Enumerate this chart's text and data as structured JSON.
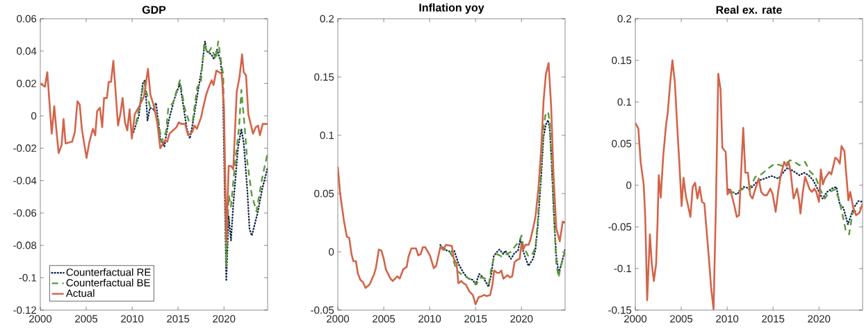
{
  "chart_data": [
    {
      "type": "line",
      "title": "GDP",
      "xlim": [
        2000,
        2024.75
      ],
      "xticks": [
        2000,
        2005,
        2010,
        2015,
        2020
      ],
      "ylim": [
        -0.12,
        0.06
      ],
      "yticks": [
        -0.12,
        -0.1,
        -0.08,
        -0.06,
        -0.04,
        -0.02,
        0,
        0.02,
        0.04,
        0.06
      ],
      "grid": false,
      "legend": "bottom left",
      "marker": "none",
      "series": [
        {
          "name": "Counterfactual RE",
          "color": "#14284b",
          "line_style": "dotted",
          "x": [
            2010.15,
            2010.73,
            2011.16,
            2011.39,
            2011.67,
            2011.94,
            2012.3,
            2012.6,
            2013.06,
            2013.51,
            2013.94,
            2014.57,
            2015.2,
            2015.96,
            2016.29,
            2016.59,
            2017.22,
            2017.6,
            2017.93,
            2018.11,
            2018.61,
            2018.91,
            2019.24,
            2019.62,
            2019.87,
            2020.25,
            2020.51,
            2020.76,
            2021.01,
            2021.52,
            2021.89,
            2022.15,
            2022.53,
            2022.78,
            2023.03,
            2023.66,
            2024.17,
            2024.75
          ],
          "values": [
            -0.01,
            0.0,
            0.02,
            0.022,
            -0.003,
            0.005,
            0.004,
            0.008,
            -0.014,
            -0.019,
            -0.004,
            0.01,
            0.02,
            -0.008,
            -0.014,
            -0.005,
            0.017,
            0.03,
            0.046,
            0.04,
            0.038,
            0.035,
            0.041,
            0.034,
            0.02,
            -0.102,
            -0.062,
            -0.077,
            -0.055,
            -0.02,
            -0.008,
            -0.017,
            -0.045,
            -0.07,
            -0.074,
            -0.06,
            -0.045,
            -0.032
          ]
        },
        {
          "name": "Counterfactual BE",
          "color": "#5a9a3c",
          "line_style": "dashed",
          "x": [
            2010.4,
            2010.78,
            2011.29,
            2011.92,
            2012.3,
            2012.8,
            2013.18,
            2013.69,
            2013.94,
            2014.44,
            2015.2,
            2015.71,
            2016.21,
            2016.59,
            2017.1,
            2017.47,
            2017.85,
            2018.23,
            2018.61,
            2019.12,
            2019.37,
            2019.62,
            2019.92,
            2020.25,
            2020.51,
            2020.76,
            2021.26,
            2021.64,
            2021.89,
            2022.27,
            2022.53,
            2023.03,
            2023.54,
            2024.17,
            2024.75
          ],
          "values": [
            -0.005,
            0.005,
            0.021,
            0.006,
            0.004,
            0.0,
            -0.016,
            -0.01,
            0.005,
            0.008,
            0.022,
            0.005,
            -0.004,
            -0.003,
            0.018,
            0.02,
            0.045,
            0.038,
            0.042,
            0.035,
            0.046,
            0.036,
            0.025,
            -0.093,
            -0.049,
            -0.056,
            -0.026,
            -0.007,
            0.016,
            -0.008,
            -0.028,
            -0.049,
            -0.059,
            -0.038,
            -0.023
          ]
        },
        {
          "name": "Actual",
          "color": "#d2644a",
          "line_style": "solid",
          "x": [
            2000,
            2000.5,
            2000.76,
            2001.24,
            2001.52,
            2001.69,
            2001.99,
            2002.32,
            2002.53,
            2002.75,
            2003.46,
            2003.76,
            2004.04,
            2004.29,
            2004.52,
            2005.03,
            2005.35,
            2005.73,
            2005.98,
            2006.19,
            2006.49,
            2006.74,
            2006.94,
            2007.25,
            2007.45,
            2007.7,
            2007.95,
            2008.16,
            2008.46,
            2008.71,
            2008.96,
            2009.22,
            2009.47,
            2009.72,
            2009.97,
            2010.28,
            2010.78,
            2011.29,
            2011.72,
            2011.99,
            2012.42,
            2012.75,
            2013.06,
            2013.56,
            2013.81,
            2014.07,
            2014.82,
            2015.08,
            2015.33,
            2015.76,
            2016.09,
            2016.54,
            2016.79,
            2017.05,
            2017.5,
            2017.73,
            2018.06,
            2018.36,
            2018.66,
            2018.86,
            2019.17,
            2019.75,
            2020.0,
            2020.25,
            2020.51,
            2020.76,
            2021.01,
            2021.39,
            2021.69,
            2021.97,
            2022.15,
            2022.4,
            2022.65,
            2022.95,
            2023.16,
            2023.46,
            2023.71,
            2023.91,
            2024.22,
            2024.75
          ],
          "values": [
            0.02,
            0.018,
            0.027,
            -0.011,
            0.006,
            -0.005,
            -0.023,
            -0.018,
            -0.002,
            -0.017,
            -0.016,
            -0.01,
            0.009,
            0.007,
            -0.008,
            -0.026,
            -0.016,
            -0.008,
            -0.012,
            0.003,
            0.005,
            -0.007,
            0.011,
            0.011,
            0.021,
            0.021,
            0.034,
            0.018,
            -0.006,
            0.001,
            0.011,
            -0.004,
            -0.009,
            0.004,
            -0.014,
            0.001,
            0.006,
            0.012,
            0.029,
            0.013,
            0.005,
            -0.005,
            -0.02,
            -0.015,
            -0.016,
            -0.011,
            -0.007,
            -0.004,
            -0.005,
            -0.005,
            -0.012,
            -0.01,
            -0.006,
            -0.008,
            -0.001,
            0.005,
            0.013,
            0.018,
            0.022,
            0.019,
            0.028,
            0.026,
            0.005,
            -0.078,
            -0.031,
            -0.031,
            -0.033,
            0.015,
            0.024,
            0.038,
            0.027,
            0.025,
            0.001,
            -0.006,
            -0.011,
            -0.007,
            -0.006,
            -0.012,
            -0.005,
            -0.005
          ]
        }
      ]
    },
    {
      "type": "line",
      "title": "Inflation yoy",
      "xlim": [
        2000,
        2024.75
      ],
      "xticks": [
        2000,
        2005,
        2010,
        2015,
        2020
      ],
      "ylim": [
        -0.05,
        0.2
      ],
      "yticks": [
        -0.05,
        0,
        0.05,
        0.1,
        0.15,
        0.2
      ],
      "grid": false,
      "legend": false,
      "marker": "none",
      "series": [
        {
          "color": "#14284b",
          "line_style": "dotted",
          "x": [
            2011.16,
            2011.46,
            2011.97,
            2012.3,
            2012.68,
            2013.18,
            2013.69,
            2014.19,
            2014.7,
            2015.0,
            2015.4,
            2015.83,
            2016.41,
            2016.72,
            2016.97,
            2017.22,
            2017.6,
            2018.03,
            2018.23,
            2018.86,
            2019.24,
            2019.62,
            2019.87,
            2020.13,
            2020.38,
            2020.76,
            2021.26,
            2021.52,
            2021.77,
            2022.15,
            2022.4,
            2022.65,
            2022.9,
            2023.08,
            2023.28,
            2023.54,
            2023.79,
            2024.04,
            2024.29,
            2024.75
          ],
          "values": [
            0.006,
            0.002,
            0.001,
            0.0,
            0.001,
            -0.011,
            -0.018,
            -0.023,
            -0.024,
            -0.028,
            -0.019,
            -0.022,
            -0.03,
            -0.019,
            -0.004,
            -0.001,
            0.002,
            -0.002,
            0.001,
            -0.006,
            -0.001,
            0.001,
            0.011,
            0.002,
            -0.004,
            -0.012,
            -0.006,
            0.002,
            0.022,
            0.065,
            0.099,
            0.109,
            0.113,
            0.105,
            0.077,
            0.03,
            -0.004,
            -0.018,
            -0.012,
            0.002
          ]
        },
        {
          "color": "#5a9a3c",
          "line_style": "dashed",
          "x": [
            2011.16,
            2011.79,
            2012.17,
            2012.42,
            2012.93,
            2013.43,
            2014.07,
            2014.57,
            2015.08,
            2015.58,
            2016.09,
            2016.46,
            2016.72,
            2016.97,
            2017.35,
            2017.85,
            2018.36,
            2018.86,
            2019.12,
            2019.75,
            2020.0,
            2020.18,
            2020.38,
            2020.76,
            2021.26,
            2021.52,
            2021.77,
            2022.15,
            2022.4,
            2022.65,
            2022.9,
            2023.08,
            2023.28,
            2023.54,
            2023.79,
            2024.04,
            2024.29,
            2024.75
          ],
          "values": [
            0.005,
            0.002,
            0.0,
            -0.003,
            -0.016,
            -0.019,
            -0.022,
            -0.024,
            -0.028,
            -0.022,
            -0.023,
            -0.027,
            -0.014,
            -0.006,
            -0.002,
            -0.004,
            -0.002,
            0.0,
            0.003,
            0.009,
            0.014,
            0.005,
            0.002,
            -0.004,
            -0.001,
            0.004,
            0.026,
            0.073,
            0.107,
            0.119,
            0.12,
            0.111,
            0.075,
            0.03,
            -0.01,
            -0.022,
            -0.012,
            0.0
          ]
        },
        {
          "color": "#d2644a",
          "line_style": "solid",
          "x": [
            2000,
            2000.25,
            2000.68,
            2000.98,
            2001.24,
            2001.49,
            2001.69,
            2001.97,
            2002.2,
            2002.45,
            2002.73,
            2003.03,
            2003.46,
            2003.96,
            2004.14,
            2004.47,
            2004.75,
            2005.0,
            2005.23,
            2005.73,
            2005.98,
            2006.49,
            2006.74,
            2007.12,
            2007.5,
            2007.7,
            2008.01,
            2008.51,
            2008.76,
            2009.02,
            2009.27,
            2009.52,
            2010.03,
            2010.45,
            2010.71,
            2011.16,
            2011.46,
            2011.79,
            2012.42,
            2012.63,
            2012.93,
            2013.13,
            2013.43,
            2013.69,
            2013.94,
            2014.32,
            2014.7,
            2015.0,
            2015.33,
            2015.66,
            2015.96,
            2016.21,
            2016.59,
            2016.84,
            2017.02,
            2017.35,
            2017.6,
            2017.8,
            2018.03,
            2018.48,
            2018.74,
            2018.99,
            2019.24,
            2019.49,
            2019.8,
            2020.0,
            2020.18,
            2020.43,
            2020.76,
            2020.96,
            2021.26,
            2021.52,
            2021.84,
            2022.15,
            2022.4,
            2022.65,
            2022.95,
            2023.23,
            2023.48,
            2023.79,
            2024.17,
            2024.49,
            2024.75
          ],
          "values": [
            0.073,
            0.05,
            0.026,
            0.013,
            0.012,
            -0.002,
            -0.008,
            -0.008,
            -0.019,
            -0.024,
            -0.026,
            -0.031,
            -0.028,
            -0.019,
            -0.014,
            0.002,
            0.001,
            -0.006,
            -0.015,
            -0.023,
            -0.025,
            -0.021,
            -0.023,
            -0.015,
            -0.013,
            -0.004,
            0.003,
            0.003,
            -0.003,
            -0.002,
            0.004,
            0.004,
            -0.003,
            -0.014,
            -0.012,
            0.004,
            0.002,
            0.006,
            0.005,
            -0.006,
            -0.01,
            -0.027,
            -0.025,
            -0.027,
            -0.028,
            -0.034,
            -0.037,
            -0.045,
            -0.039,
            -0.038,
            -0.037,
            -0.038,
            -0.037,
            -0.028,
            -0.016,
            -0.018,
            -0.018,
            -0.016,
            -0.023,
            -0.02,
            -0.022,
            -0.021,
            -0.009,
            -0.007,
            -0.006,
            0.007,
            0.002,
            0.006,
            0.006,
            0.01,
            0.02,
            0.03,
            0.054,
            0.089,
            0.129,
            0.152,
            0.162,
            0.125,
            0.067,
            0.02,
            0.009,
            0.026,
            0.025
          ]
        }
      ]
    },
    {
      "type": "line",
      "title": "Real ex. rate",
      "xlim": [
        2000,
        2024.75
      ],
      "xticks": [
        2000,
        2005,
        2010,
        2015,
        2020
      ],
      "ylim": [
        -0.15,
        0.2
      ],
      "yticks": [
        -0.15,
        -0.1,
        -0.05,
        0,
        0.05,
        0.1,
        0.15,
        0.2
      ],
      "grid": false,
      "legend": false,
      "marker": "none",
      "series": [
        {
          "color": "#14284b",
          "line_style": "dotted",
          "x": [
            2010.09,
            2011.05,
            2011.8,
            2012.56,
            2013.32,
            2014.07,
            2014.83,
            2015.59,
            2016.22,
            2016.6,
            2017.35,
            2017.86,
            2018.36,
            2018.87,
            2019.37,
            2019.87,
            2020.38,
            2020.88,
            2021.39,
            2021.89,
            2022.27,
            2022.65,
            2023.15,
            2023.4,
            2023.78,
            2024.29,
            2024.75
          ],
          "values": [
            -0.005,
            -0.011,
            -0.002,
            -0.004,
            0.005,
            0.008,
            0.011,
            0.008,
            0.017,
            0.021,
            0.016,
            0.012,
            0.015,
            0.012,
            0.006,
            -0.005,
            -0.016,
            -0.008,
            -0.004,
            -0.002,
            -0.023,
            -0.027,
            -0.047,
            -0.039,
            -0.027,
            -0.019,
            -0.02
          ]
        },
        {
          "color": "#5a9a3c",
          "line_style": "dashed",
          "x": [
            2010.09,
            2011.05,
            2011.8,
            2012.43,
            2013.06,
            2013.7,
            2014.58,
            2015.21,
            2016.09,
            2016.85,
            2017.35,
            2017.86,
            2018.49,
            2018.99,
            2019.62,
            2020.13,
            2020.63,
            2021.13,
            2021.77,
            2022.14,
            2022.52,
            2022.9,
            2023.28,
            2023.66,
            2024.16,
            2024.54
          ],
          "values": [
            -0.009,
            -0.008,
            -0.004,
            -0.005,
            0.01,
            0.013,
            0.021,
            0.026,
            0.023,
            0.03,
            0.028,
            0.024,
            0.028,
            0.017,
            0.01,
            -0.005,
            -0.016,
            -0.008,
            -0.005,
            -0.016,
            -0.033,
            -0.054,
            -0.059,
            -0.033,
            -0.03,
            -0.027
          ]
        },
        {
          "color": "#d2644a",
          "line_style": "solid",
          "x": [
            2000,
            2000.33,
            2000.58,
            2000.91,
            2001.08,
            2001.29,
            2001.59,
            2001.79,
            2002.02,
            2002.27,
            2002.42,
            2002.55,
            2002.77,
            2003.03,
            2003.35,
            2003.53,
            2003.78,
            2004.04,
            2004.31,
            2004.62,
            2004.79,
            2005.04,
            2005.25,
            2005.5,
            2005.75,
            2006.0,
            2006.25,
            2006.51,
            2006.76,
            2007.01,
            2007.26,
            2007.52,
            2008.02,
            2008.27,
            2008.52,
            2008.78,
            2009.03,
            2009.28,
            2009.48,
            2009.84,
            2010.04,
            2010.34,
            2010.79,
            2011.05,
            2011.3,
            2011.75,
            2011.98,
            2012.26,
            2012.51,
            2012.76,
            2013.06,
            2013.44,
            2013.7,
            2014.02,
            2014.33,
            2014.7,
            2014.96,
            2015.28,
            2015.59,
            2015.84,
            2016.22,
            2016.47,
            2016.72,
            2016.92,
            2017.23,
            2017.4,
            2017.6,
            2017.81,
            2017.98,
            2018.24,
            2018.49,
            2018.99,
            2019.24,
            2019.5,
            2019.7,
            2020.0,
            2020.2,
            2020.43,
            2020.63,
            2020.88,
            2021.13,
            2021.34,
            2021.77,
            2022.02,
            2022.27,
            2022.45,
            2022.77,
            2022.98,
            2023.2,
            2023.4,
            2023.73,
            2024.04,
            2024.41,
            2024.75
          ],
          "values": [
            0.075,
            0.068,
            0.028,
            0.001,
            -0.038,
            -0.138,
            -0.059,
            -0.094,
            -0.115,
            -0.094,
            -0.044,
            0.012,
            -0.015,
            0.034,
            0.073,
            0.087,
            0.121,
            0.15,
            0.123,
            0.059,
            0.028,
            -0.025,
            0.009,
            -0.013,
            -0.025,
            -0.038,
            -0.002,
            0.003,
            -0.016,
            -0.002,
            -0.02,
            -0.022,
            -0.089,
            -0.125,
            -0.149,
            -0.022,
            0.134,
            0.115,
            0.045,
            0.04,
            -0.011,
            -0.005,
            -0.025,
            -0.038,
            -0.036,
            0.069,
            0.015,
            0.015,
            -0.012,
            -0.016,
            -0.005,
            0.008,
            -0.008,
            -0.012,
            -0.012,
            -0.004,
            -0.011,
            -0.032,
            -0.005,
            0.012,
            0.028,
            0.023,
            0.027,
            0.015,
            -0.016,
            -0.011,
            -0.004,
            -0.016,
            -0.034,
            -0.008,
            0.01,
            -0.005,
            -0.008,
            -0.004,
            -0.008,
            -0.02,
            0.019,
            0.001,
            0.008,
            0.012,
            0.016,
            0.013,
            0.033,
            0.031,
            0.026,
            0.047,
            0.041,
            0.012,
            -0.018,
            -0.008,
            -0.027,
            -0.036,
            -0.033,
            -0.022
          ]
        }
      ]
    }
  ]
}
